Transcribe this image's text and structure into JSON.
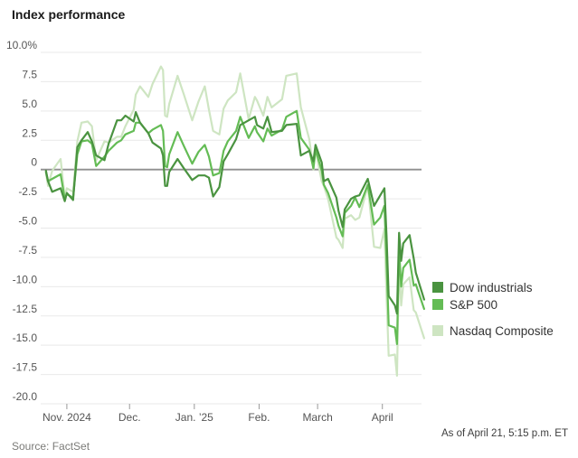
{
  "header": {
    "title": "Index performance"
  },
  "footer": {
    "source": "Source: FactSet",
    "as_of": "As of April 21, 5:15 p.m. ET"
  },
  "colors": {
    "dow": "#4a9340",
    "sp500": "#64bc55",
    "nasdaq": "#cee5c2",
    "zero_line": "#8f8f8f",
    "grid": "#e9e9e9",
    "axis_text": "#555555"
  },
  "chart_data": {
    "type": "line",
    "title": "Index performance",
    "x_unit": "calendar days since Oct 21, 2024",
    "x_range_days": [
      0,
      182
    ],
    "ylim": [
      -20,
      10
    ],
    "grid": true,
    "legend_position": "right",
    "y_ticks": [
      {
        "value": 10,
        "label": "10.0%"
      },
      {
        "value": 7.5,
        "label": "7.5"
      },
      {
        "value": 5,
        "label": "5.0"
      },
      {
        "value": 2.5,
        "label": "2.5"
      },
      {
        "value": 0,
        "label": "0"
      },
      {
        "value": -2.5,
        "label": "-2.5"
      },
      {
        "value": -5,
        "label": "-5.0"
      },
      {
        "value": -7.5,
        "label": "-7.5"
      },
      {
        "value": -10,
        "label": "-10.0"
      },
      {
        "value": -12.5,
        "label": "-12.5"
      },
      {
        "value": -15,
        "label": "-15.0"
      },
      {
        "value": -17.5,
        "label": "-17.5"
      },
      {
        "value": -20,
        "label": "-20.0"
      }
    ],
    "x_ticks": [
      {
        "day": 11,
        "label": "Nov. 2024"
      },
      {
        "day": 41,
        "label": "Dec."
      },
      {
        "day": 72,
        "label": "Jan. ’25"
      },
      {
        "day": 103,
        "label": "Feb."
      },
      {
        "day": 131,
        "label": "March"
      },
      {
        "day": 162,
        "label": "April"
      }
    ],
    "days": [
      1,
      2,
      4,
      8,
      10,
      11,
      14,
      16,
      18,
      21,
      23,
      25,
      29,
      31,
      35,
      37,
      39,
      43,
      44,
      46,
      50,
      52,
      56,
      57,
      58,
      59,
      60,
      64,
      67,
      71,
      74,
      77,
      79,
      81,
      84,
      86,
      88,
      92,
      94,
      98,
      101,
      102,
      105,
      107,
      109,
      114,
      116,
      121,
      123,
      127,
      129,
      130,
      133,
      134,
      136,
      140,
      141,
      143,
      144,
      147,
      149,
      151,
      155,
      158,
      161,
      163,
      164,
      165,
      168,
      169,
      170,
      171,
      172,
      175,
      177,
      178,
      182
    ],
    "series": [
      {
        "name": "Dow industrials",
        "color": "#4a9340",
        "values": [
          -0.1,
          -1.0,
          -1.9,
          -1.6,
          -2.7,
          -2.0,
          -2.6,
          1.9,
          2.5,
          3.2,
          2.4,
          1.2,
          0.8,
          2.2,
          4.2,
          4.2,
          4.6,
          4.1,
          4.9,
          4.0,
          3.1,
          2.3,
          1.8,
          1.2,
          -1.4,
          -1.4,
          -0.2,
          0.9,
          0.1,
          -0.9,
          -0.5,
          -0.5,
          -0.7,
          -2.3,
          -1.5,
          0.7,
          1.3,
          2.6,
          3.8,
          4.2,
          4.5,
          3.8,
          3.5,
          4.5,
          3.2,
          3.3,
          3.8,
          3.9,
          1.2,
          1.6,
          0.7,
          2.1,
          0.6,
          -1.0,
          -0.8,
          -2.4,
          -3.5,
          -4.9,
          -3.4,
          -2.5,
          -2.3,
          -2.2,
          -0.8,
          -3.1,
          -2.2,
          -1.6,
          -5.6,
          -10.8,
          -11.6,
          -12.3,
          -5.4,
          -7.8,
          -6.3,
          -5.6,
          -7.6,
          -8.8,
          -11.1
        ]
      },
      {
        "name": "S&P 500",
        "color": "#64bc55",
        "values": [
          -0.2,
          -1.0,
          -0.8,
          -0.4,
          -2.5,
          -2.1,
          -2.4,
          1.3,
          2.4,
          2.5,
          2.2,
          0.3,
          1.1,
          1.6,
          2.3,
          2.5,
          3.0,
          3.3,
          4.0,
          4.0,
          3.1,
          3.4,
          3.8,
          3.3,
          0.3,
          0.2,
          1.3,
          3.2,
          2.0,
          0.5,
          1.5,
          2.1,
          1.1,
          -0.5,
          -0.3,
          1.6,
          2.4,
          3.3,
          4.5,
          2.7,
          3.7,
          3.2,
          2.4,
          3.5,
          2.9,
          3.4,
          4.5,
          5.0,
          2.7,
          1.7,
          0.1,
          1.7,
          -0.1,
          -1.3,
          -2.0,
          -4.1,
          -4.8,
          -5.7,
          -3.7,
          -3.1,
          -2.4,
          -3.2,
          -1.3,
          -4.7,
          -4.1,
          -3.1,
          -7.8,
          -13.3,
          -13.5,
          -14.9,
          -6.8,
          -10.0,
          -8.4,
          -7.7,
          -9.9,
          -9.8,
          -11.9
        ]
      },
      {
        "name": "Nasdaq Composite",
        "color": "#cee5c2",
        "values": [
          -0.3,
          -1.4,
          -0.1,
          0.9,
          -2.4,
          -1.6,
          -1.9,
          2.4,
          4.0,
          4.1,
          3.7,
          0.8,
          2.4,
          2.3,
          2.8,
          2.8,
          3.7,
          5.1,
          6.4,
          7.1,
          6.2,
          7.3,
          8.8,
          8.5,
          4.6,
          4.5,
          5.6,
          8.0,
          6.4,
          4.2,
          5.8,
          7.1,
          5.1,
          3.3,
          3.0,
          5.2,
          5.9,
          6.6,
          8.2,
          4.3,
          6.2,
          5.9,
          4.6,
          6.2,
          5.3,
          6.0,
          8.0,
          8.2,
          5.3,
          2.6,
          0.0,
          1.7,
          -1.0,
          -1.4,
          -2.5,
          -5.8,
          -6.0,
          -6.7,
          -4.2,
          -3.9,
          -4.3,
          -4.1,
          -1.4,
          -6.6,
          -6.7,
          -5.1,
          -10.7,
          -15.9,
          -15.8,
          -17.6,
          -7.6,
          -11.6,
          -9.8,
          -9.2,
          -12.0,
          -12.2,
          -14.4
        ]
      }
    ]
  }
}
